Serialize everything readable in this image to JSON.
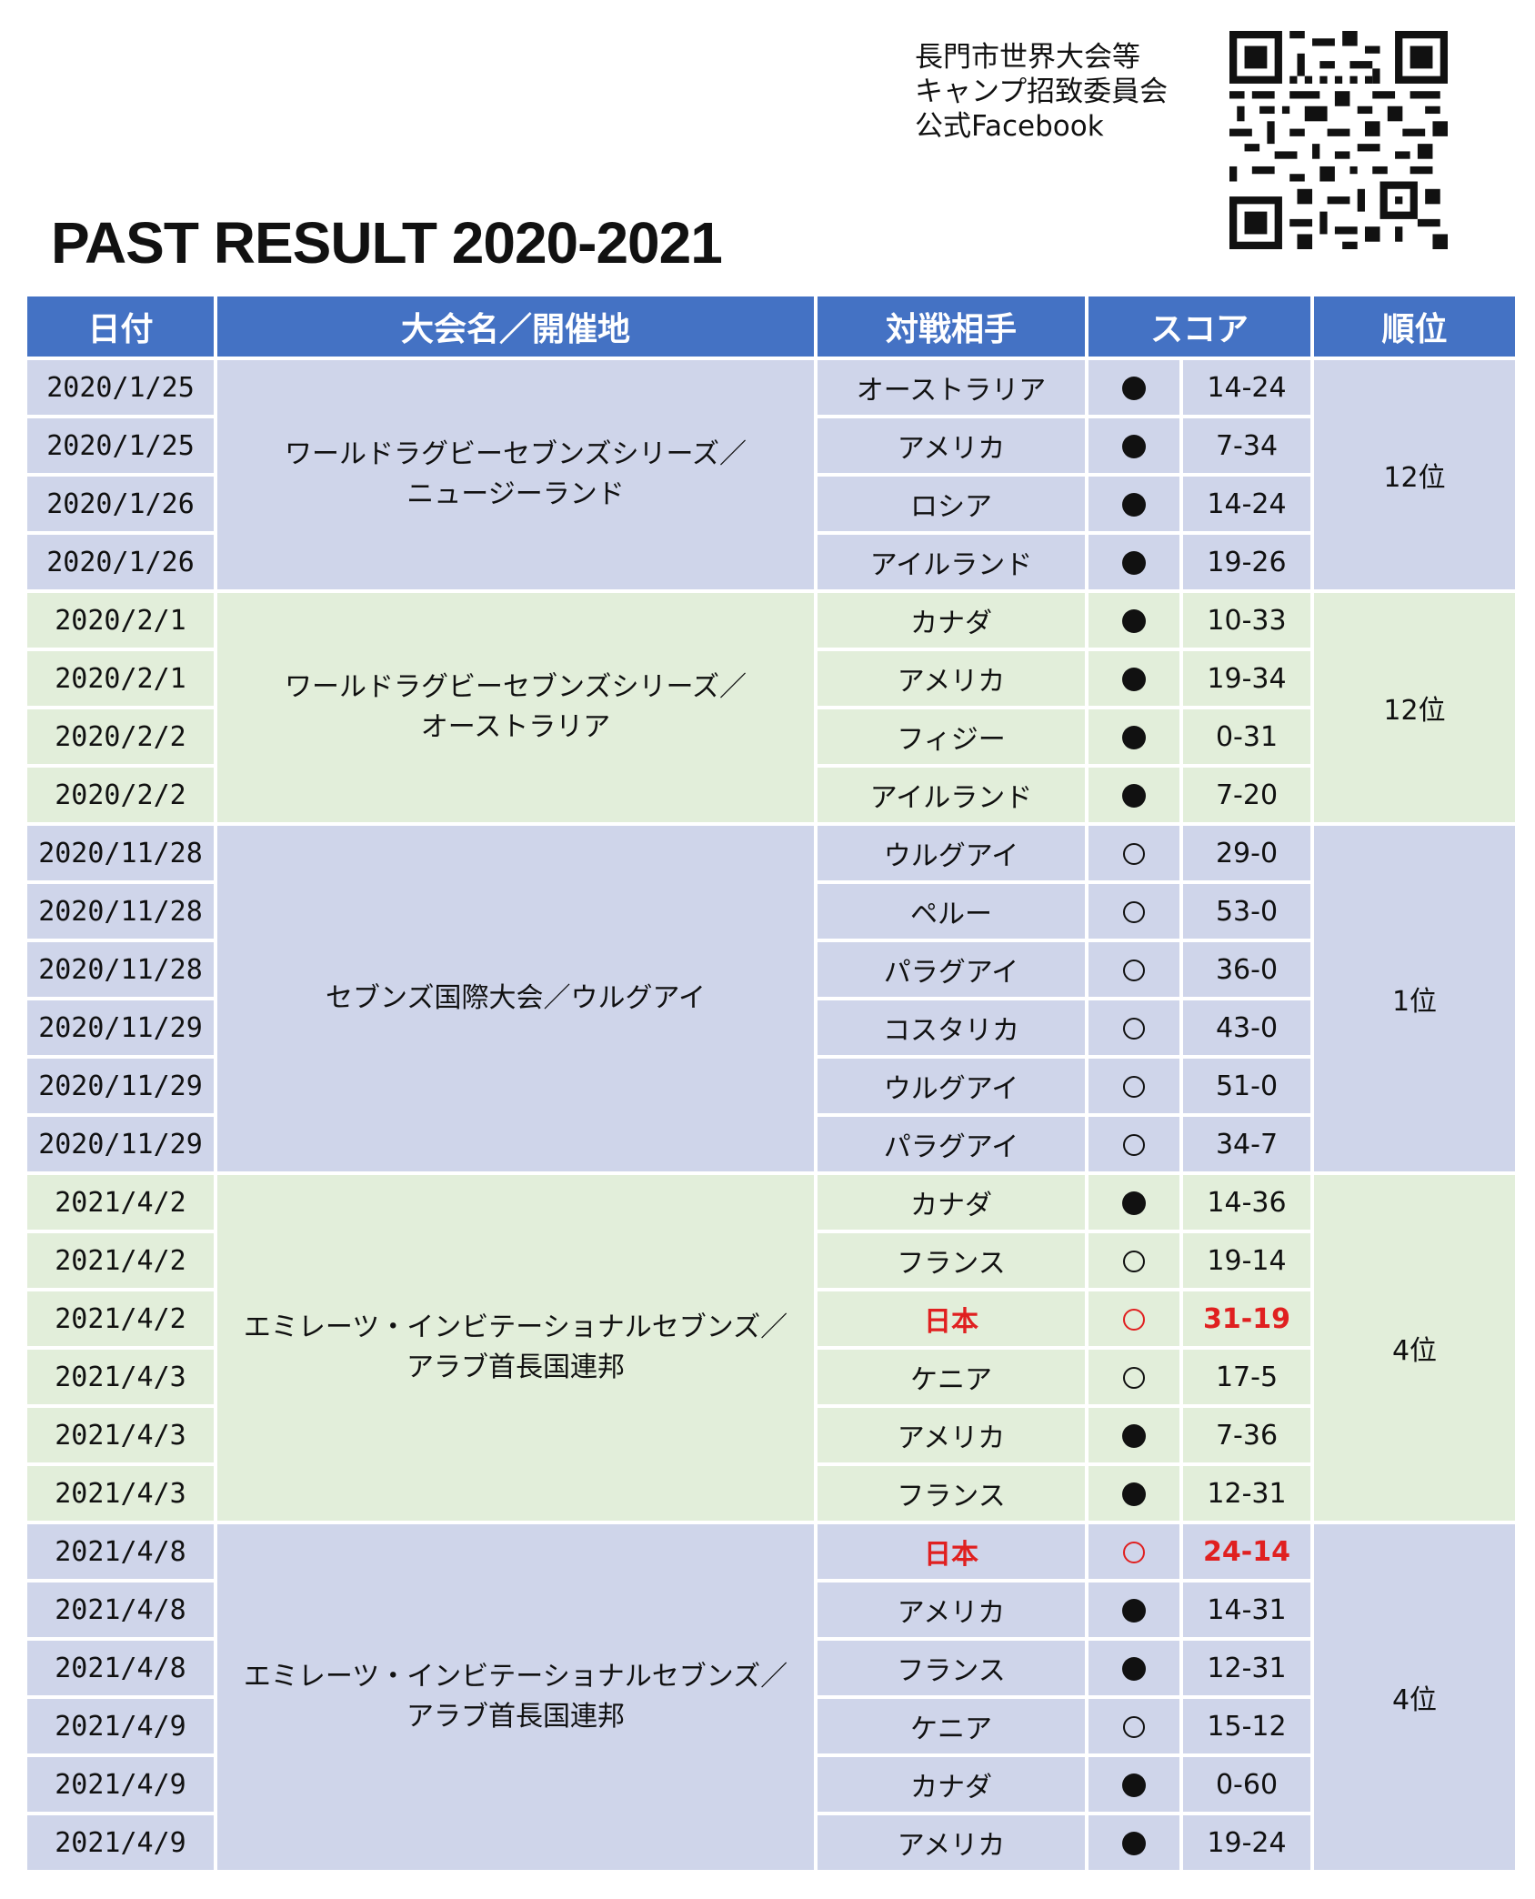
{
  "facebook_label": [
    "長門市世界大会等",
    "キャンプ招致委員会",
    "公式Facebook"
  ],
  "title": "PAST RESULT 2020-2021",
  "headers": {
    "date": "日付",
    "event": "大会名／開催地",
    "opponent": "対戦相手",
    "score": "スコア",
    "rank": "順位"
  },
  "groups": [
    {
      "event": [
        "ワールドラグビーセブンズシリーズ／",
        "ニュージーランド"
      ],
      "rank": "12位",
      "bg": "blue",
      "matches": [
        {
          "date": "2020/1/25",
          "opponent": "オーストラリア",
          "result": "loss",
          "score": "14-24"
        },
        {
          "date": "2020/1/25",
          "opponent": "アメリカ",
          "result": "loss",
          "score": "7-34"
        },
        {
          "date": "2020/1/26",
          "opponent": "ロシア",
          "result": "loss",
          "score": "14-24"
        },
        {
          "date": "2020/1/26",
          "opponent": "アイルランド",
          "result": "loss",
          "score": "19-26"
        }
      ]
    },
    {
      "event": [
        "ワールドラグビーセブンズシリーズ／",
        "オーストラリア"
      ],
      "rank": "12位",
      "bg": "green",
      "matches": [
        {
          "date": "2020/2/1",
          "opponent": "カナダ",
          "result": "loss",
          "score": "10-33"
        },
        {
          "date": "2020/2/1",
          "opponent": "アメリカ",
          "result": "loss",
          "score": "19-34"
        },
        {
          "date": "2020/2/2",
          "opponent": "フィジー",
          "result": "loss",
          "score": "0-31"
        },
        {
          "date": "2020/2/2",
          "opponent": "アイルランド",
          "result": "loss",
          "score": "7-20"
        }
      ]
    },
    {
      "event": [
        "セブンズ国際大会／ウルグアイ"
      ],
      "rank": "1位",
      "bg": "blue",
      "matches": [
        {
          "date": "2020/11/28",
          "opponent": "ウルグアイ",
          "result": "win",
          "score": "29-0"
        },
        {
          "date": "2020/11/28",
          "opponent": "ペルー",
          "result": "win",
          "score": "53-0"
        },
        {
          "date": "2020/11/28",
          "opponent": "パラグアイ",
          "result": "win",
          "score": "36-0"
        },
        {
          "date": "2020/11/29",
          "opponent": "コスタリカ",
          "result": "win",
          "score": "43-0"
        },
        {
          "date": "2020/11/29",
          "opponent": "ウルグアイ",
          "result": "win",
          "score": "51-0"
        },
        {
          "date": "2020/11/29",
          "opponent": "パラグアイ",
          "result": "win",
          "score": "34-7"
        }
      ]
    },
    {
      "event": [
        "エミレーツ・インビテーショナルセブンズ／",
        "アラブ首長国連邦"
      ],
      "rank": "4位",
      "bg": "green",
      "matches": [
        {
          "date": "2021/4/2",
          "opponent": "カナダ",
          "result": "loss",
          "score": "14-36"
        },
        {
          "date": "2021/4/2",
          "opponent": "フランス",
          "result": "win",
          "score": "19-14"
        },
        {
          "date": "2021/4/2",
          "opponent": "日本",
          "result": "win",
          "score": "31-19",
          "highlight": true
        },
        {
          "date": "2021/4/3",
          "opponent": "ケニア",
          "result": "win",
          "score": "17-5"
        },
        {
          "date": "2021/4/3",
          "opponent": "アメリカ",
          "result": "loss",
          "score": "7-36"
        },
        {
          "date": "2021/4/3",
          "opponent": "フランス",
          "result": "loss",
          "score": "12-31"
        }
      ]
    },
    {
      "event": [
        "エミレーツ・インビテーショナルセブンズ／",
        "アラブ首長国連邦"
      ],
      "rank": "4位",
      "bg": "blue",
      "matches": [
        {
          "date": "2021/4/8",
          "opponent": "日本",
          "result": "win",
          "score": "24-14",
          "highlight": true
        },
        {
          "date": "2021/4/8",
          "opponent": "アメリカ",
          "result": "loss",
          "score": "14-31"
        },
        {
          "date": "2021/4/8",
          "opponent": "フランス",
          "result": "loss",
          "score": "12-31"
        },
        {
          "date": "2021/4/9",
          "opponent": "ケニア",
          "result": "win",
          "score": "15-12"
        },
        {
          "date": "2021/4/9",
          "opponent": "カナダ",
          "result": "loss",
          "score": "0-60"
        },
        {
          "date": "2021/4/9",
          "opponent": "アメリカ",
          "result": "loss",
          "score": "19-24"
        }
      ]
    }
  ],
  "colors": {
    "header": "#4472c4",
    "blue_row": "#cfd5ea",
    "green_row": "#e2eeda",
    "highlight": "#e02020"
  }
}
